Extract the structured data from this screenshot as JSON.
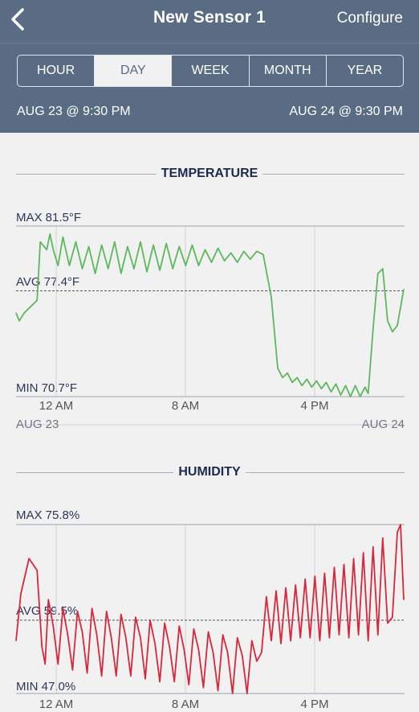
{
  "header": {
    "title": "New Sensor 1",
    "configure_label": "Configure",
    "tabs": [
      {
        "label": "HOUR",
        "active": false
      },
      {
        "label": "DAY",
        "active": true
      },
      {
        "label": "WEEK",
        "active": false
      },
      {
        "label": "MONTH",
        "active": false
      },
      {
        "label": "YEAR",
        "active": false
      }
    ],
    "range_start": "AUG 23 @ 9:30 PM",
    "range_end": "AUG 24 @ 9:30 PM"
  },
  "temperature": {
    "title": "TEMPERATURE",
    "max_label": "MAX 81.5°F",
    "avg_label": "AVG 77.4°F",
    "min_label": "MIN 70.7°F",
    "x_ticks": [
      "12 AM",
      "8 AM",
      "4 PM"
    ],
    "date_start": "AUG 23",
    "date_end": "AUG 24",
    "color": "#5cb85c"
  },
  "humidity": {
    "title": "HUMIDITY",
    "max_label": "MAX 75.8%",
    "avg_label": "AVG 59.5%",
    "min_label": "MIN 47.0%",
    "x_ticks": [
      "12 AM",
      "8 AM",
      "4 PM"
    ],
    "color": "#d9263a",
    "low_color": "#4caf50"
  },
  "chart_data": [
    {
      "type": "line",
      "title": "TEMPERATURE",
      "x_unit": "hours since start (AUG 23 9:30 PM)",
      "x_ticks": [
        "12 AM",
        "8 AM",
        "4 PM"
      ],
      "max": 81.5,
      "avg": 77.4,
      "min": 70.7,
      "series": [
        {
          "x": [
            0,
            0.2,
            0.5,
            1.3,
            1.5,
            1.9,
            2.1,
            2.3,
            2.6,
            2.9,
            3.3,
            3.7,
            4.1,
            4.5,
            4.9,
            5.3,
            5.7,
            6.1,
            6.5,
            6.9,
            7.3,
            7.7,
            8.1,
            8.5,
            8.9,
            9.3,
            9.7,
            10.1,
            10.5,
            10.9,
            11.3,
            11.7,
            12.1,
            12.5,
            12.9,
            13.3,
            13.7,
            14.1,
            14.5,
            14.9,
            15.3,
            15.8,
            16.2,
            16.5,
            16.8,
            17.1,
            17.4,
            17.7,
            18.0,
            18.3,
            18.6,
            18.9,
            19.2,
            19.5,
            19.8,
            20.1,
            20.4,
            20.7,
            21.0,
            21.3,
            21.6,
            21.8,
            22.1,
            22.4,
            22.7,
            23.0,
            23.3,
            23.6,
            24.0
          ],
          "y": [
            76.0,
            75.5,
            76.0,
            76.8,
            80.5,
            80.0,
            81.0,
            80.0,
            79.0,
            80.8,
            79.0,
            80.5,
            78.8,
            80.2,
            78.5,
            80.3,
            78.8,
            80.5,
            78.5,
            80.2,
            78.8,
            80.5,
            78.6,
            80.3,
            78.7,
            80.4,
            78.8,
            80.2,
            79.0,
            80.3,
            79.0,
            80.0,
            79.2,
            80.1,
            79.3,
            79.8,
            79.2,
            79.9,
            79.4,
            79.9,
            79.7,
            77.0,
            72.5,
            71.9,
            72.2,
            71.6,
            71.9,
            71.4,
            71.8,
            71.3,
            71.7,
            71.2,
            71.6,
            71.0,
            71.5,
            70.8,
            71.4,
            70.7,
            71.4,
            70.7,
            71.3,
            70.9,
            75.0,
            78.5,
            78.8,
            75.5,
            74.8,
            75.2,
            77.5
          ]
        }
      ]
    },
    {
      "type": "line",
      "title": "HUMIDITY",
      "x_unit": "hours since start (AUG 23 9:30 PM)",
      "x_ticks": [
        "12 AM",
        "8 AM",
        "4 PM"
      ],
      "max": 75.8,
      "avg": 59.5,
      "min": 47.0,
      "series": [
        {
          "x": [
            0,
            0.3,
            0.8,
            1.3,
            1.6,
            1.8,
            2.0,
            2.3,
            2.6,
            2.9,
            3.2,
            3.5,
            3.8,
            4.1,
            4.4,
            4.7,
            5.0,
            5.3,
            5.6,
            5.9,
            6.2,
            6.5,
            6.8,
            7.1,
            7.4,
            7.7,
            8.0,
            8.3,
            8.6,
            8.9,
            9.2,
            9.5,
            9.8,
            10.1,
            10.4,
            10.7,
            11.0,
            11.3,
            11.6,
            11.9,
            12.2,
            12.5,
            12.8,
            13.1,
            13.4,
            13.7,
            14.0,
            14.3,
            14.6,
            14.9,
            15.2,
            15.5,
            15.8,
            16.1,
            16.4,
            16.7,
            17.0,
            17.3,
            17.6,
            17.9,
            18.2,
            18.5,
            18.8,
            19.1,
            19.4,
            19.7,
            20.0,
            20.3,
            20.6,
            20.9,
            21.2,
            21.5,
            21.8,
            22.1,
            22.4,
            22.7,
            23.0,
            23.3,
            23.6,
            23.8,
            24.0
          ],
          "y": [
            56.0,
            64.0,
            70.0,
            68.0,
            55.0,
            52.0,
            63.0,
            58.5,
            52.0,
            61.5,
            57.0,
            51.0,
            61.0,
            57.5,
            50.5,
            61.5,
            57.0,
            50.0,
            61.0,
            56.5,
            50.0,
            60.5,
            56.5,
            50.0,
            60.0,
            56.5,
            49.5,
            59.5,
            55.5,
            49.0,
            59.0,
            55.0,
            49.0,
            58.5,
            54.5,
            48.5,
            58.0,
            54.5,
            48.0,
            57.5,
            54.0,
            47.5,
            57.0,
            54.0,
            47.0,
            56.5,
            53.5,
            47.0,
            56.0,
            52.5,
            54.0,
            63.5,
            56.0,
            64.5,
            55.5,
            65.0,
            56.0,
            65.5,
            56.5,
            66.5,
            56.5,
            67.0,
            56.0,
            67.5,
            56.5,
            68.5,
            57.0,
            69.0,
            56.5,
            70.0,
            57.0,
            71.0,
            56.0,
            72.0,
            57.0,
            73.5,
            59.0,
            60.0,
            74.5,
            75.8,
            63.0
          ]
        }
      ]
    }
  ]
}
